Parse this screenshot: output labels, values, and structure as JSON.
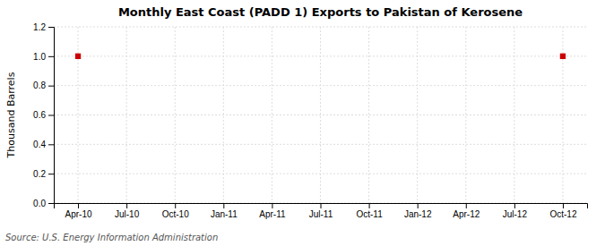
{
  "chart_data": {
    "type": "scatter",
    "title": "Monthly East Coast (PADD 1) Exports to Pakistan of Kerosene",
    "y_label": "Thousand Barrels",
    "annotations": [
      "Source: U.S. Energy Information Administration"
    ],
    "categories": [
      "Apr-10",
      "Jul-10",
      "Oct-10",
      "Jan-11",
      "Apr-11",
      "Jul-11",
      "Oct-11",
      "Jan-12",
      "Apr-12",
      "Jul-12",
      "Oct-12"
    ],
    "values": [
      1.0,
      null,
      null,
      null,
      null,
      null,
      null,
      null,
      null,
      null,
      1.0
    ],
    "color": "#cc0000",
    "marker": "square",
    "ylim": [
      0.0,
      1.2
    ],
    "yticks": [
      {
        "value": 0.0,
        "label": "0.0"
      },
      0.2,
      0.4,
      0.6,
      0.8,
      {
        "value": 1.0,
        "label": "1.0"
      },
      1.2
    ],
    "grid": true
  }
}
